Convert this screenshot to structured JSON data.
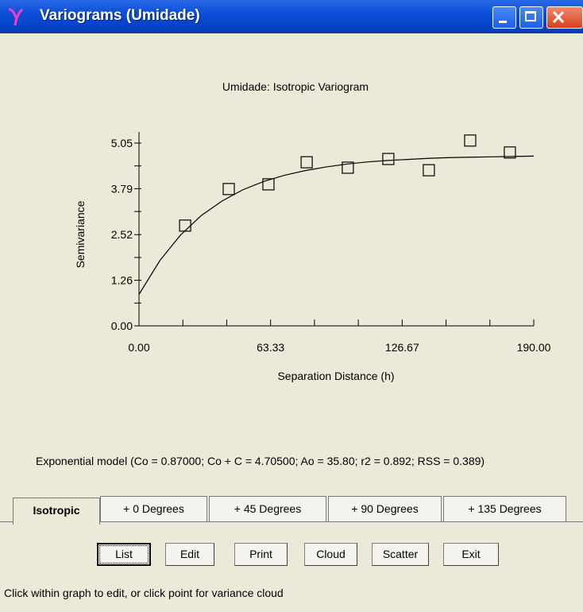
{
  "window": {
    "title": "Variograms (Umidade)"
  },
  "chart_data": {
    "type": "scatter",
    "title": "Umidade: Isotropic Variogram",
    "x_label": "Separation Distance (h)",
    "y_label": "Semivariance",
    "xlim": [
      0,
      190
    ],
    "ylim": [
      0,
      5.05
    ],
    "xticks": [
      {
        "value": 0,
        "label": "0.00"
      },
      {
        "value": 63.33,
        "label": "63.33"
      },
      {
        "value": 126.67,
        "label": "126.67"
      },
      {
        "value": 190,
        "label": "190.00"
      }
    ],
    "xminor": [
      21.11,
      42.22,
      84.44,
      105.56,
      147.78,
      168.89
    ],
    "yticks": [
      {
        "value": 0,
        "label": "0.00"
      },
      {
        "value": 1.26,
        "label": "1.26"
      },
      {
        "value": 2.52,
        "label": "2.52"
      },
      {
        "value": 3.79,
        "label": "3.79"
      },
      {
        "value": 5.05,
        "label": "5.05"
      }
    ],
    "yminor": [
      0.63,
      1.89,
      3.16,
      4.42
    ],
    "points": {
      "x": [
        22.2,
        43.2,
        62.3,
        80.7,
        100.5,
        120.0,
        139.5,
        159.4,
        178.5
      ],
      "values": [
        2.77,
        3.78,
        3.91,
        4.52,
        4.37,
        4.61,
        4.3,
        5.12,
        4.79
      ],
      "color": "#000000"
    },
    "model_curve": {
      "x": [
        0,
        10,
        20,
        30,
        40,
        50,
        60,
        70,
        80,
        90,
        100,
        110,
        120,
        130,
        140,
        150,
        160,
        170,
        180,
        190
      ],
      "values": [
        0.87,
        1.8,
        2.51,
        3.05,
        3.45,
        3.76,
        3.99,
        4.16,
        4.29,
        4.39,
        4.47,
        4.53,
        4.57,
        4.6,
        4.63,
        4.65,
        4.66,
        4.67,
        4.68,
        4.69
      ],
      "color": "#000000"
    }
  },
  "model_text": "Exponential model (Co = 0.87000; Co + C = 4.70500; Ao = 35.80; r2 = 0.892; RSS = 0.389)",
  "tabs": [
    "Isotropic",
    "+ 0 Degrees",
    "+ 45 Degrees",
    "+ 90 Degrees",
    "+ 135 Degrees"
  ],
  "buttons": [
    "List",
    "Edit",
    "Print",
    "Cloud",
    "Scatter",
    "Exit"
  ],
  "status": "Click within graph to edit, or click point for variance cloud"
}
